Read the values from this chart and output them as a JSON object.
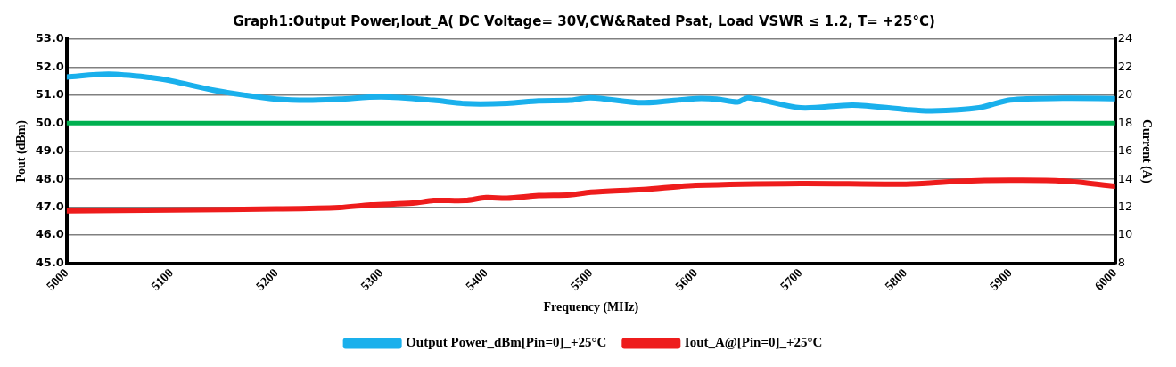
{
  "chart_data": {
    "type": "line",
    "title": "Graph1:Output Power,Iout_A( DC Voltage= 30V,CW&Rated Psat, Load VSWR ≤ 1.2, T= +25°C)",
    "xlabel": "Frequency (MHz)",
    "ylabel": "Pout (dBm)",
    "y2label": "Current (A)",
    "xlim": [
      5000,
      6000
    ],
    "xticks": [
      5000,
      5100,
      5200,
      5300,
      5400,
      5500,
      5600,
      5700,
      5800,
      5900,
      6000
    ],
    "ylim": [
      45,
      53
    ],
    "yticks": [
      {
        "value": 45,
        "label": "45.0"
      },
      {
        "value": 46,
        "label": "46.0"
      },
      {
        "value": 47,
        "label": "47.0"
      },
      {
        "value": 48,
        "label": "48.0"
      },
      {
        "value": 49,
        "label": "49.0"
      },
      {
        "value": 50,
        "label": "50.0"
      },
      {
        "value": 51,
        "label": "51.0"
      },
      {
        "value": 52,
        "label": "52.0"
      },
      {
        "value": 53,
        "label": "53.0"
      }
    ],
    "y2lim": [
      8,
      24
    ],
    "y2ticks": [
      8,
      10,
      12,
      14,
      16,
      18,
      20,
      22,
      24
    ],
    "grid": "y",
    "legend": "bottom",
    "line_style": "solid",
    "marker": "none",
    "ref_lines": [
      {
        "axis": "y",
        "value": 50,
        "color": "#00b050"
      }
    ],
    "series": [
      {
        "name": "Output Power_dBm[Pin=0]_+25°C",
        "color": "#1ab0ec",
        "x": [
          5000,
          5040,
          5080,
          5100,
          5140,
          5170,
          5200,
          5230,
          5260,
          5300,
          5350,
          5380,
          5420,
          5450,
          5480,
          5500,
          5550,
          5600,
          5620,
          5640,
          5650,
          5700,
          5750,
          5800,
          5825,
          5870,
          5900,
          5950,
          6000
        ],
        "values": [
          51.65,
          51.75,
          51.63,
          51.51,
          51.18,
          51.0,
          50.86,
          50.82,
          50.86,
          50.94,
          50.82,
          50.7,
          50.71,
          50.8,
          50.82,
          50.91,
          50.73,
          50.88,
          50.86,
          50.76,
          50.91,
          50.55,
          50.65,
          50.49,
          50.44,
          50.55,
          50.83,
          50.89,
          50.88
        ]
      },
      {
        "name": "Iout_A@[Pin=0]_+25°C",
        "color": "#ee1c1c",
        "axis": "y2",
        "x": [
          5000,
          5100,
          5200,
          5260,
          5290,
          5330,
          5350,
          5380,
          5400,
          5420,
          5450,
          5480,
          5500,
          5550,
          5600,
          5700,
          5800,
          5850,
          5900,
          5950,
          6000
        ],
        "values": [
          11.74,
          11.8,
          11.88,
          11.98,
          12.17,
          12.29,
          12.48,
          12.48,
          12.69,
          12.64,
          12.83,
          12.88,
          13.07,
          13.27,
          13.56,
          13.7,
          13.65,
          13.85,
          13.93,
          13.88,
          13.5
        ]
      }
    ]
  }
}
